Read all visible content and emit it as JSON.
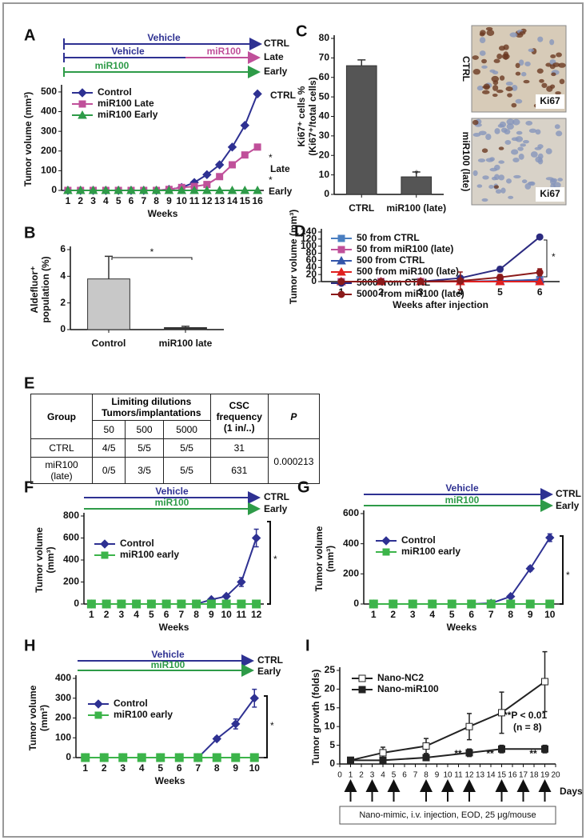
{
  "chart_data": [
    {
      "panel": "A",
      "type": "line",
      "ylabel": "Tumor volume (mm³)",
      "xlabel": "Weeks",
      "categories": [
        1,
        2,
        3,
        4,
        5,
        6,
        7,
        8,
        9,
        10,
        11,
        12,
        13,
        14,
        15,
        16
      ],
      "ylim": [
        0,
        520
      ],
      "yticks": [
        0,
        100,
        200,
        300,
        400,
        500
      ],
      "series": [
        {
          "name": "Control",
          "color": "#2e3192",
          "marker": "diamond",
          "values": [
            0,
            0,
            0,
            0,
            0,
            0,
            0,
            0,
            5,
            15,
            40,
            80,
            130,
            220,
            330,
            490
          ]
        },
        {
          "name": "miR100 Late",
          "color": "#c0509a",
          "marker": "square",
          "values": [
            0,
            0,
            0,
            0,
            0,
            0,
            0,
            0,
            5,
            15,
            20,
            30,
            70,
            130,
            180,
            220
          ]
        },
        {
          "name": "miR100 Early",
          "color": "#2e9b48",
          "marker": "triangle",
          "values": [
            0,
            0,
            0,
            0,
            0,
            0,
            0,
            0,
            0,
            0,
            0,
            0,
            0,
            0,
            0,
            0
          ]
        }
      ],
      "annotations": [
        "Vehicle",
        "CTRL",
        "Vehicle",
        "miR100",
        "Late",
        "miR100",
        "Early",
        "CTRL",
        "*",
        "Late",
        "*",
        "Early"
      ]
    },
    {
      "panel": "C",
      "type": "bar",
      "ylabel": [
        "Ki67⁺ cells %",
        "(Ki67⁺/total cells)"
      ],
      "categories": [
        "CTRL",
        "miR100 (late)"
      ],
      "values": [
        66,
        9
      ],
      "errors": [
        3,
        2.5
      ],
      "colors": [
        "#555555",
        "#555555"
      ],
      "ylim": [
        0,
        80
      ],
      "yticks": [
        0,
        10,
        20,
        30,
        40,
        50,
        60,
        70,
        80
      ],
      "annotations": [
        "*"
      ],
      "images": [
        {
          "label": "CTRL",
          "stain": "Ki67"
        },
        {
          "label": "miR100 (late)",
          "stain": "Ki67"
        }
      ]
    },
    {
      "panel": "B",
      "type": "bar",
      "ylabel": [
        "Aldefluor⁺",
        "population (%)"
      ],
      "categories": [
        "Control",
        "miR100 late"
      ],
      "values": [
        3.8,
        0.15
      ],
      "errors": [
        1.7,
        0.1
      ],
      "colors": [
        "#c8c8c8",
        "#333333"
      ],
      "ylim": [
        0,
        6
      ],
      "yticks": [
        0,
        2,
        4,
        6
      ],
      "annotations": [
        "*"
      ]
    },
    {
      "panel": "D",
      "type": "line",
      "ylabel": "Tumor volume (mm³)",
      "xlabel": "Weeks after injection",
      "categories": [
        1,
        2,
        3,
        4,
        5,
        6
      ],
      "ylim": [
        0,
        140
      ],
      "yticks": [
        0,
        20,
        40,
        60,
        80,
        100,
        120,
        140
      ],
      "series": [
        {
          "name": "50 from CTRL",
          "color": "#4a7fc1",
          "marker": "square",
          "values": [
            0,
            0,
            0,
            0,
            0,
            6
          ],
          "errors": [
            0,
            0,
            0,
            0,
            0,
            1
          ]
        },
        {
          "name": "50 from miR100 (late)",
          "color": "#c0509a",
          "marker": "square",
          "values": [
            0,
            0,
            0,
            0,
            0,
            0
          ],
          "errors": [
            0,
            0,
            0,
            0,
            0,
            0
          ]
        },
        {
          "name": "500 from CTRL",
          "color": "#3355aa",
          "marker": "triangle",
          "values": [
            0,
            0,
            0,
            0,
            2,
            5
          ],
          "errors": [
            0,
            0,
            0,
            0,
            1,
            2
          ]
        },
        {
          "name": "500 from miR100 (late)",
          "color": "#e02020",
          "marker": "triangle",
          "values": [
            0,
            0,
            0,
            0,
            0,
            0
          ],
          "errors": [
            0,
            0,
            0,
            0,
            0,
            0
          ]
        },
        {
          "name": "5000 from CTRL",
          "color": "#2b2a80",
          "marker": "circle",
          "values": [
            0,
            0,
            0,
            10,
            35,
            126
          ],
          "errors": [
            0,
            0,
            0,
            0,
            7,
            3
          ]
        },
        {
          "name": "5000 from miR100 (late)",
          "color": "#8b1a1a",
          "marker": "circle",
          "values": [
            0,
            0,
            0,
            2,
            12,
            26
          ],
          "errors": [
            0,
            0,
            0,
            25,
            8,
            10
          ]
        }
      ],
      "annotations": [
        "*"
      ]
    },
    {
      "panel": "F",
      "type": "line",
      "ylabel": [
        "Tumor volume",
        "(mm³)"
      ],
      "xlabel": "Weeks",
      "categories": [
        1,
        2,
        3,
        4,
        5,
        6,
        7,
        8,
        9,
        10,
        11,
        12
      ],
      "ylim": [
        0,
        800
      ],
      "yticks": [
        0,
        200,
        400,
        600,
        800
      ],
      "series": [
        {
          "name": "Control",
          "color": "#2e3192",
          "marker": "diamond",
          "values": [
            0,
            0,
            0,
            0,
            0,
            0,
            0,
            0,
            40,
            70,
            200,
            600
          ],
          "errors": [
            0,
            0,
            0,
            0,
            0,
            0,
            0,
            0,
            5,
            15,
            40,
            80
          ]
        },
        {
          "name": "miR100 early",
          "color": "#3cb44a",
          "marker": "square",
          "values": [
            0,
            0,
            0,
            0,
            0,
            0,
            0,
            0,
            0,
            0,
            0,
            0
          ]
        }
      ],
      "annotations": [
        "Vehicle",
        "CTRL",
        "miR100",
        "Early",
        "*"
      ]
    },
    {
      "panel": "G",
      "type": "line",
      "ylabel": [
        "Tumor volume",
        "(mm³)"
      ],
      "xlabel": "Weeks",
      "categories": [
        1,
        2,
        3,
        4,
        5,
        6,
        7,
        8,
        9,
        10
      ],
      "ylim": [
        0,
        600
      ],
      "yticks": [
        0,
        200,
        400,
        600
      ],
      "series": [
        {
          "name": "Control",
          "color": "#2e3192",
          "marker": "diamond",
          "values": [
            0,
            0,
            0,
            0,
            0,
            0,
            5,
            50,
            235,
            440
          ],
          "errors": [
            0,
            0,
            0,
            0,
            0,
            0,
            0,
            5,
            15,
            25
          ]
        },
        {
          "name": "miR100 early",
          "color": "#3cb44a",
          "marker": "square",
          "values": [
            0,
            0,
            0,
            0,
            0,
            0,
            0,
            0,
            0,
            0
          ]
        }
      ],
      "annotations": [
        "Vehicle",
        "CTRL",
        "miR100",
        "Early",
        "*"
      ]
    },
    {
      "panel": "H",
      "type": "line",
      "ylabel": [
        "Tumor volume",
        "(mm³)"
      ],
      "xlabel": "Weeks",
      "categories": [
        1,
        2,
        3,
        4,
        5,
        6,
        7,
        8,
        9,
        10
      ],
      "ylim": [
        0,
        400
      ],
      "yticks": [
        0,
        100,
        200,
        300,
        400
      ],
      "series": [
        {
          "name": "Control",
          "color": "#2e3192",
          "marker": "diamond",
          "values": [
            0,
            0,
            0,
            0,
            0,
            0,
            0,
            95,
            170,
            300
          ],
          "errors": [
            0,
            0,
            0,
            0,
            0,
            0,
            0,
            10,
            25,
            45
          ]
        },
        {
          "name": "miR100 early",
          "color": "#3cb44a",
          "marker": "square",
          "values": [
            0,
            0,
            0,
            0,
            0,
            0,
            0,
            0,
            0,
            0
          ]
        }
      ],
      "annotations": [
        "Vehicle",
        "CTRL",
        "miR100",
        "Early",
        "*"
      ]
    },
    {
      "panel": "I",
      "type": "line",
      "ylabel": "Tumor growth (folds)",
      "xlabel": "Days",
      "xlim": [
        0,
        20
      ],
      "xticks": [
        0,
        1,
        2,
        3,
        4,
        5,
        6,
        7,
        8,
        9,
        10,
        11,
        12,
        13,
        14,
        15,
        16,
        17,
        18,
        19,
        20
      ],
      "ylim": [
        0,
        25
      ],
      "yticks": [
        0,
        5,
        10,
        15,
        20,
        25
      ],
      "series": [
        {
          "name": "Nano-NC2",
          "color": "#222222",
          "marker": "open-square",
          "x": [
            1,
            4,
            8,
            12,
            15,
            19
          ],
          "values": [
            1,
            3,
            4.8,
            10,
            13.7,
            22
          ],
          "errors": [
            0.3,
            1.5,
            2,
            3.5,
            5.5,
            8
          ]
        },
        {
          "name": "Nano-miR100",
          "color": "#222222",
          "marker": "square",
          "x": [
            1,
            4,
            8,
            12,
            15,
            19
          ],
          "values": [
            1,
            1,
            1.7,
            3,
            4,
            4
          ],
          "errors": [
            0.3,
            0.5,
            0.3,
            1,
            1,
            1
          ]
        }
      ],
      "injection_days": [
        1,
        3,
        5,
        8,
        10,
        12,
        15,
        17,
        19
      ],
      "caption": "Nano-mimic, i.v. injection, EOD, 25 μg/mouse",
      "annotations": [
        "**",
        "**",
        "**",
        "**P < 0.01",
        "(n = 8)"
      ]
    }
  ],
  "table": {
    "panel": "E",
    "group": "Group",
    "dilutions": [
      "Limiting dilutions",
      "Tumors/implantations"
    ],
    "frequency": [
      "CSC",
      "frequency",
      "(1 in/..)"
    ],
    "p": "P",
    "doses": [
      50,
      500,
      5000
    ],
    "rows": [
      [
        "CTRL",
        "4/5",
        "5/5",
        "5/5",
        31
      ],
      [
        "miR100 (late)",
        "0/5",
        "3/5",
        "5/5",
        631
      ]
    ],
    "p_value": 0.000213
  }
}
